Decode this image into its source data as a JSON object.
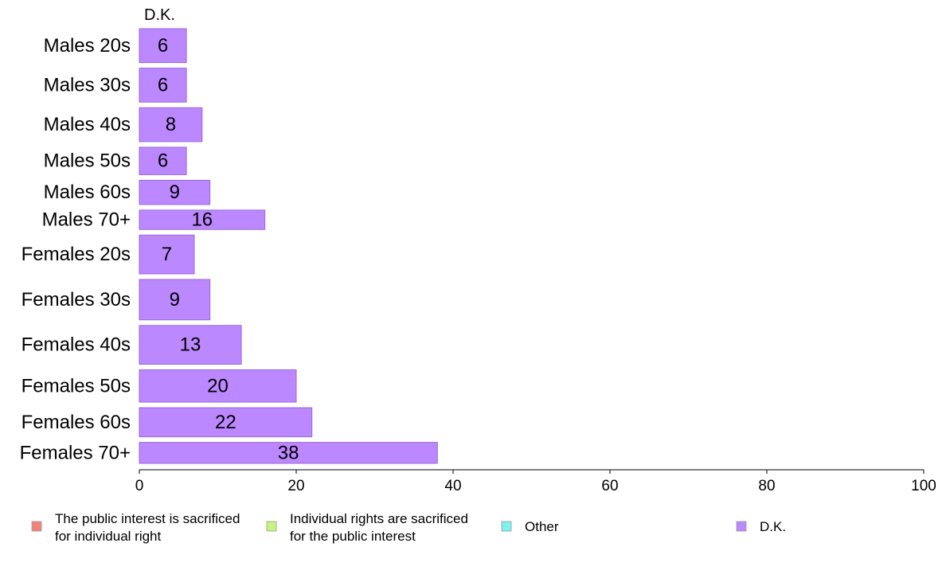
{
  "chart_data": {
    "type": "bar",
    "orientation": "horizontal",
    "stacked": true,
    "column_header": "D.K.",
    "categories": [
      "Males 20s",
      "Males 30s",
      "Males 40s",
      "Males 50s",
      "Males 60s",
      "Males 70+",
      "Females 20s",
      "Females 30s",
      "Females 40s",
      "Females 50s",
      "Females 60s",
      "Females 70+"
    ],
    "series": [
      {
        "name": "The public interest is sacrificed\nfor individual right",
        "color": "#f4827a",
        "values": [
          0,
          0,
          0,
          0,
          0,
          0,
          0,
          0,
          0,
          0,
          0,
          0
        ]
      },
      {
        "name": "Individual rights are sacrificed\nfor the public interest",
        "color": "#c6f57e",
        "values": [
          0,
          0,
          0,
          0,
          0,
          0,
          0,
          0,
          0,
          0,
          0,
          0
        ]
      },
      {
        "name": "Other",
        "color": "#7ef0f0",
        "values": [
          0,
          0,
          0,
          0,
          0,
          0,
          0,
          0,
          0,
          0,
          0,
          0
        ]
      },
      {
        "name": "D.K.",
        "color": "#bb88ff",
        "values": [
          6,
          6,
          8,
          6,
          9,
          16,
          7,
          9,
          13,
          20,
          22,
          38
        ]
      }
    ],
    "bar_labels": [
      "6",
      "6",
      "8",
      "6",
      "9",
      "16",
      "7",
      "9",
      "13",
      "20",
      "22",
      "38"
    ],
    "bar_weights": [
      42,
      42,
      42,
      34,
      30,
      24,
      48,
      50,
      48,
      40,
      36,
      26
    ],
    "xlim": [
      0,
      100
    ],
    "xticks": [
      0,
      20,
      40,
      60,
      80,
      100
    ],
    "grid": false,
    "legend_position": "bottom"
  }
}
